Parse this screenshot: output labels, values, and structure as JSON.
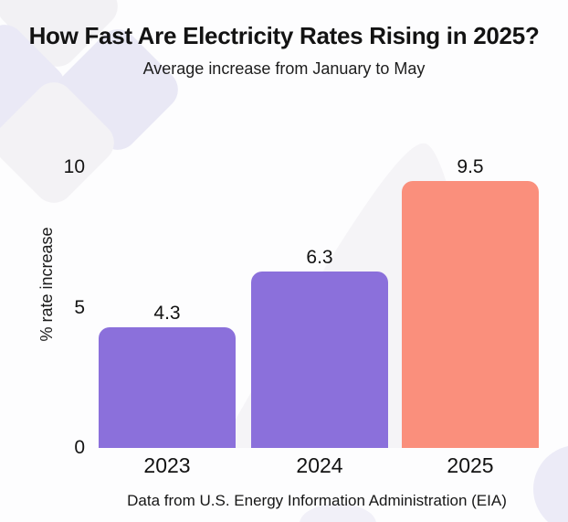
{
  "header": {
    "title": "How Fast Are Electricity Rates Rising in 2025?",
    "subtitle": "Average increase from January to May"
  },
  "footer": {
    "source": "Data from U.S. Energy Information Administration (EIA)"
  },
  "chart_data": {
    "type": "bar",
    "title": "How Fast Are Electricity Rates Rising in 2025?",
    "subtitle": "Average increase from January to May",
    "categories": [
      "2023",
      "2024",
      "2025"
    ],
    "values": [
      4.3,
      6.3,
      9.5
    ],
    "value_labels": [
      "4.3",
      "6.3",
      "9.5"
    ],
    "bar_colors": [
      "#8B70DB",
      "#8B70DB",
      "#FA8F7C"
    ],
    "xlabel": "",
    "ylabel": "% rate increase",
    "ylim": [
      0,
      10
    ],
    "yticks": [
      0,
      5,
      10
    ],
    "grid": false,
    "legend": false,
    "source_note": "Data from U.S. Energy Information Administration (EIA)"
  },
  "colors": {
    "purple_bar": "#8B70DB",
    "salmon_bar": "#FA8F7C",
    "text": "#151515",
    "background": "#FDFDFE",
    "deco_lavender": "#EAE9F6",
    "deco_gray": "#F3F2F5",
    "deco_mountain": "#F5F4F7"
  }
}
